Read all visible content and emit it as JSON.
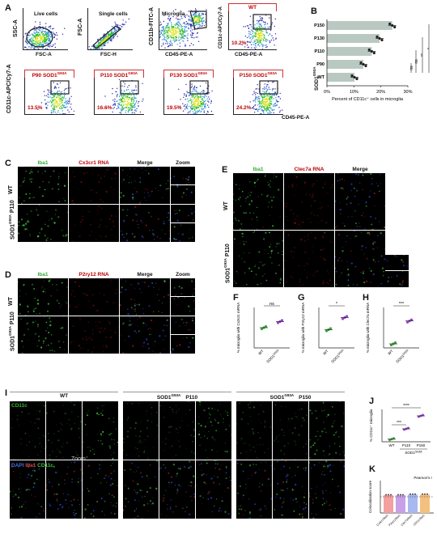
{
  "panels": {
    "A": "A",
    "B": "B",
    "C": "C",
    "D": "D",
    "E": "E",
    "F": "F",
    "G": "G",
    "H": "H",
    "I": "I",
    "J": "J",
    "K": "K"
  },
  "panelA": {
    "plots": [
      {
        "y_axis": "SSC-A",
        "x_axis": "FSC-A",
        "gate": "Live cells"
      },
      {
        "y_axis": "FSC-A",
        "x_axis": "FSC-H",
        "gate": "Single cells"
      },
      {
        "y_axis": "CD11b-FITC-A",
        "x_axis": "CD45-PE-A",
        "gate": "Microglia"
      },
      {
        "y_axis": "CD11c-APC/Cy7-A",
        "x_axis": "CD45-PE-A",
        "title": "WT",
        "pct": "10.2%"
      }
    ],
    "bottom_y_axis": "CD11c-APC/Cy7-A",
    "bottom_x_axis": "CD45-PE-A",
    "bottom": [
      {
        "title": "P90 SOD1",
        "sup": "G93A",
        "pct": "13.5%"
      },
      {
        "title": "P110 SOD1",
        "sup": "G93A",
        "pct": "16.6%"
      },
      {
        "title": "P130 SOD1",
        "sup": "G93A",
        "pct": "19.5%"
      },
      {
        "title": "P150 SOD1",
        "sup": "G93A",
        "pct": "24.2%"
      }
    ]
  },
  "panelB": {
    "group_label": "SOD1",
    "group_sup": "G93A",
    "xlabel": "Percent of CD11c⁺ cells in microglia",
    "xticks": [
      "0%",
      "10%",
      "20%",
      "30%"
    ],
    "sig": [
      "ns",
      "ns",
      "**",
      "*"
    ]
  },
  "panelC": {
    "cols": [
      "Iba1",
      "Cx3cr1 RNA",
      "Merge",
      "Zoom"
    ],
    "rows": [
      "WT",
      "SOD1"
    ],
    "row_sup": "G93A",
    "row_suffix": "P110"
  },
  "panelD": {
    "cols": [
      "Iba1",
      "P2ry12 RNA",
      "Merge",
      "Zoom"
    ],
    "rows": [
      "WT",
      "SOD1"
    ],
    "row_sup": "G93A",
    "row_suffix": "P110"
  },
  "panelE": {
    "cols": [
      "Iba1",
      "Clec7a RNA",
      "Merge"
    ],
    "rows": [
      "WT",
      "SOD1"
    ],
    "row_sup": "G93A",
    "row_suffix": "P110"
  },
  "panelF": {
    "ylabel": "% microglia with Cx3cr1 mRNA",
    "sig": "ns",
    "groups": [
      "WT",
      "SOD1"
    ],
    "sup": "G93A"
  },
  "panelG": {
    "ylabel": "% microglia with P2ry12 mRNA",
    "sig": "*",
    "groups": [
      "WT",
      "SOD1"
    ],
    "sup": "G93A"
  },
  "panelH": {
    "ylabel": "% microglia with Clec7a mRNA",
    "sig": "***",
    "groups": [
      "WT",
      "SOD1"
    ],
    "sup": "G93A"
  },
  "panelI": {
    "cols": [
      {
        "name": "WT"
      },
      {
        "name": "SOD1",
        "sup": "G93A",
        "suffix": "P110"
      },
      {
        "name": "SOD1",
        "sup": "G93A",
        "suffix": "P150"
      }
    ],
    "row1": "CD11c",
    "row2_parts": [
      "DAPI",
      "/",
      "Iba1",
      "/",
      "CD11c"
    ],
    "zoom": "Zoom"
  },
  "panelJ": {
    "ylabel": "% CD11c⁺ microglia",
    "groups": [
      "WT",
      "P110",
      "P150"
    ],
    "group_label": "SOD1",
    "group_sup": "G93A",
    "sig": [
      "***",
      "****"
    ]
  },
  "panelK": {
    "ylabel": "Colocalization score",
    "legend": "Pearson's r",
    "groups": [
      "Cx3cr1/Iba1",
      "P2ry12/Iba1",
      "Clec7a/Iba1",
      "CD11c/Iba1"
    ]
  },
  "chart_data": [
    {
      "type": "bar",
      "title": "",
      "orientation": "horizontal",
      "categories": [
        "WT",
        "P90",
        "P110",
        "P130",
        "P150"
      ],
      "values": [
        10.2,
        13.5,
        16.6,
        19.5,
        24.2
      ],
      "xlabel": "Percent of CD11c⁺ cells in microglia",
      "xlim": [
        0,
        30
      ]
    },
    {
      "type": "scatter",
      "title": "",
      "categories": [
        "WT",
        "SOD1 G93A"
      ],
      "values": [
        50,
        65
      ],
      "ylabel": "% microglia with Cx3cr1 mRNA",
      "ylim": [
        0,
        100
      ]
    },
    {
      "type": "scatter",
      "title": "",
      "categories": [
        "WT",
        "SOD1 G93A"
      ],
      "values": [
        45,
        75
      ],
      "ylabel": "% microglia with P2ry12 mRNA",
      "ylim": [
        0,
        100
      ]
    },
    {
      "type": "scatter",
      "title": "",
      "categories": [
        "WT",
        "SOD1 G93A"
      ],
      "values": [
        3,
        20
      ],
      "ylabel": "% microglia with Clec7a mRNA",
      "ylim": [
        0,
        30
      ]
    },
    {
      "type": "scatter",
      "title": "",
      "categories": [
        "WT",
        "P110",
        "P150"
      ],
      "values": [
        2,
        10,
        20
      ],
      "ylabel": "% CD11c⁺ microglia",
      "ylim": [
        0,
        25
      ]
    },
    {
      "type": "bar",
      "title": "",
      "categories": [
        "Cx3cr1/Iba1",
        "P2ry12/Iba1",
        "Clec7a/Iba1",
        "CD11c/Iba1"
      ],
      "values": [
        0.55,
        0.55,
        0.57,
        0.57
      ],
      "ylabel": "Colocalization score",
      "reference_line": 0.5,
      "legend": "Pearson's r",
      "ylim": [
        0,
        1
      ]
    }
  ]
}
